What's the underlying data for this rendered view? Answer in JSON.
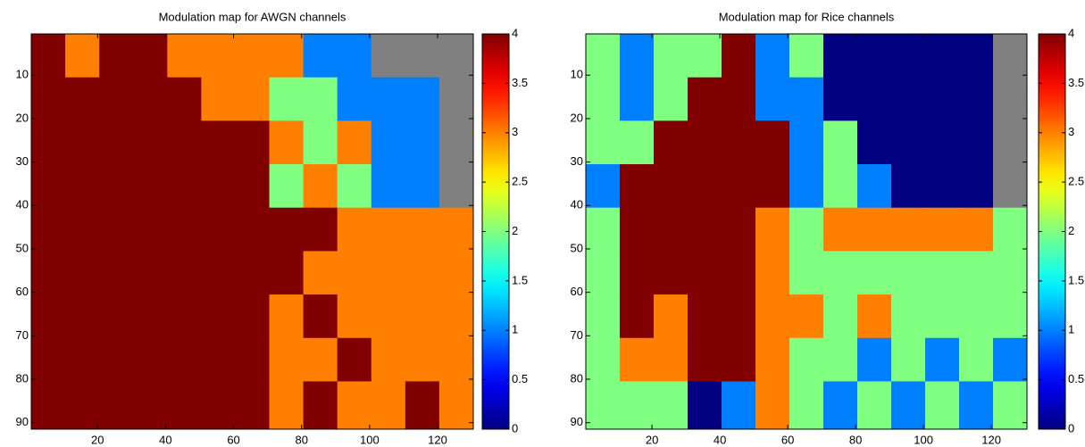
{
  "chart_data": [
    {
      "type": "heatmap",
      "title": "Modulation map for AWGN channels",
      "xbins": [
        0.5,
        10.5,
        20.5,
        30.5,
        40.5,
        50.5,
        60.5,
        70.5,
        80.5,
        90.5,
        100.5,
        110.5,
        120.5,
        130.5
      ],
      "ybins": [
        0.5,
        10.5,
        20.5,
        30.5,
        40.5,
        50.5,
        60.5,
        70.5,
        80.5,
        91.5
      ],
      "z": [
        [
          4,
          3,
          4,
          4,
          3,
          3,
          3,
          3,
          1,
          1,
          null,
          null,
          null
        ],
        [
          4,
          4,
          4,
          4,
          4,
          3,
          3,
          2,
          2,
          1,
          1,
          1,
          null
        ],
        [
          4,
          4,
          4,
          4,
          4,
          4,
          4,
          3,
          2,
          3,
          1,
          1,
          null
        ],
        [
          4,
          4,
          4,
          4,
          4,
          4,
          4,
          2,
          3,
          2,
          1,
          1,
          null
        ],
        [
          4,
          4,
          4,
          4,
          4,
          4,
          4,
          4,
          4,
          3,
          3,
          3,
          3
        ],
        [
          4,
          4,
          4,
          4,
          4,
          4,
          4,
          4,
          3,
          3,
          3,
          3,
          3
        ],
        [
          4,
          4,
          4,
          4,
          4,
          4,
          4,
          3,
          4,
          3,
          3,
          3,
          3
        ],
        [
          4,
          4,
          4,
          4,
          4,
          4,
          4,
          3,
          3,
          4,
          3,
          3,
          3
        ],
        [
          4,
          4,
          4,
          4,
          4,
          4,
          4,
          3,
          4,
          3,
          3,
          4,
          3
        ]
      ],
      "xlim": [
        0.5,
        130.5
      ],
      "ylim": [
        0.5,
        91.5
      ],
      "y_reversed": true,
      "xticks": [
        20,
        40,
        60,
        80,
        100,
        120
      ],
      "yticks": [
        10,
        20,
        30,
        40,
        50,
        60,
        70,
        80,
        90
      ],
      "clim": [
        0,
        4
      ],
      "cticks": [
        0,
        0.5,
        1,
        1.5,
        2,
        2.5,
        3,
        3.5,
        4
      ],
      "colormap": "jet",
      "nan_color": "#808080"
    },
    {
      "type": "heatmap",
      "title": "Modulation map for Rice channels",
      "xbins": [
        0.5,
        10.5,
        20.5,
        30.5,
        40.5,
        50.5,
        60.5,
        70.5,
        80.5,
        90.5,
        100.5,
        110.5,
        120.5,
        130.5
      ],
      "ybins": [
        0.5,
        10.5,
        20.5,
        30.5,
        40.5,
        50.5,
        60.5,
        70.5,
        80.5,
        91.5
      ],
      "z": [
        [
          2,
          1,
          2,
          2,
          4,
          1,
          2,
          0,
          0,
          0,
          0,
          0,
          null
        ],
        [
          2,
          1,
          2,
          4,
          4,
          1,
          1,
          0,
          0,
          0,
          0,
          0,
          null
        ],
        [
          2,
          2,
          4,
          4,
          4,
          4,
          1,
          2,
          0,
          0,
          0,
          0,
          null
        ],
        [
          1,
          4,
          4,
          4,
          4,
          4,
          1,
          2,
          1,
          0,
          0,
          0,
          null
        ],
        [
          2,
          4,
          4,
          4,
          4,
          3,
          2,
          3,
          3,
          3,
          3,
          3,
          2
        ],
        [
          2,
          4,
          4,
          4,
          4,
          3,
          2,
          2,
          2,
          2,
          2,
          2,
          2
        ],
        [
          2,
          4,
          3,
          4,
          4,
          3,
          3,
          2,
          3,
          2,
          2,
          2,
          2
        ],
        [
          2,
          3,
          3,
          4,
          4,
          3,
          2,
          2,
          1,
          2,
          1,
          2,
          1
        ],
        [
          2,
          2,
          2,
          0,
          1,
          3,
          2,
          1,
          2,
          1,
          2,
          1,
          2
        ]
      ],
      "xlim": [
        0.5,
        130.5
      ],
      "ylim": [
        0.5,
        91.5
      ],
      "y_reversed": true,
      "xticks": [
        20,
        40,
        60,
        80,
        100,
        120
      ],
      "yticks": [
        10,
        20,
        30,
        40,
        50,
        60,
        70,
        80,
        90
      ],
      "clim": [
        0,
        4
      ],
      "cticks": [
        0,
        0.5,
        1,
        1.5,
        2,
        2.5,
        3,
        3.5,
        4
      ],
      "colormap": "jet",
      "nan_color": "#808080"
    }
  ]
}
